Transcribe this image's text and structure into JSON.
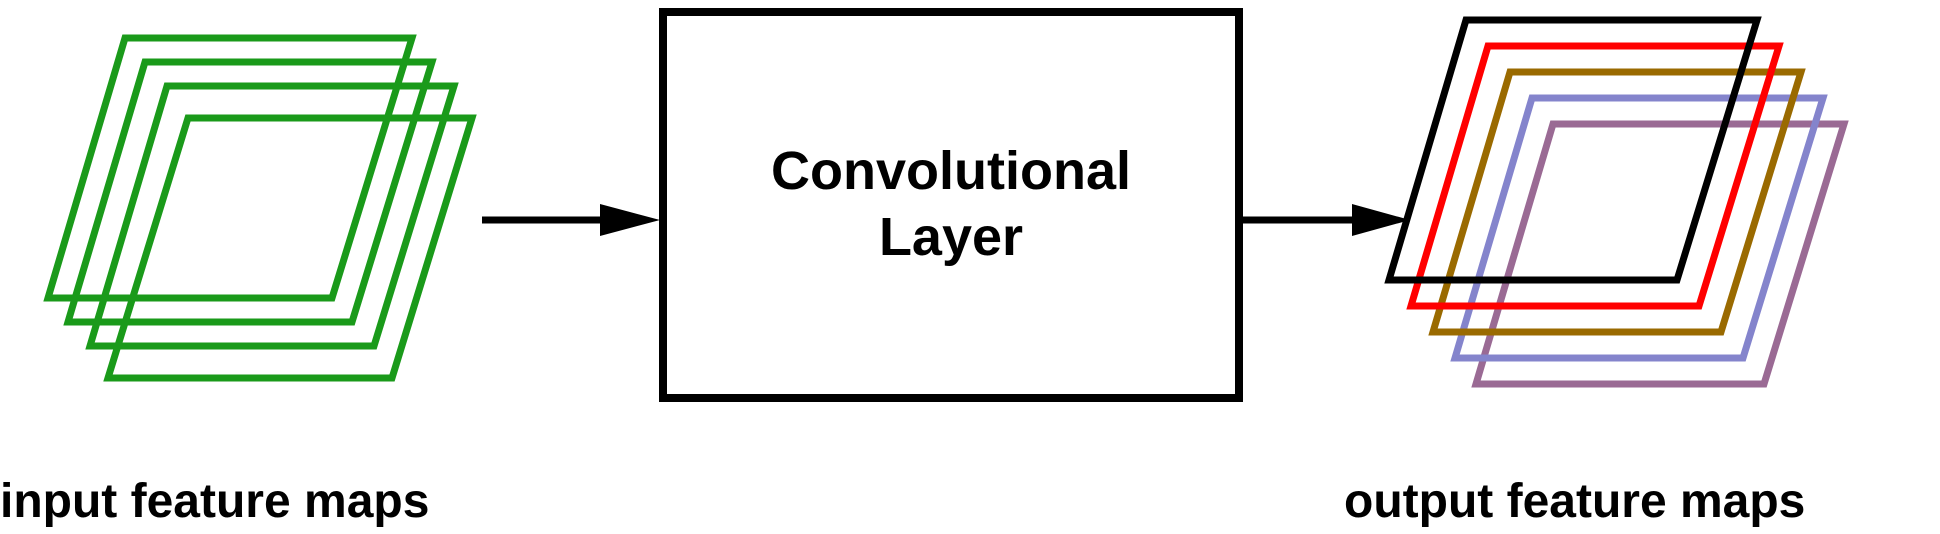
{
  "diagram": {
    "layer_box": {
      "line1": "Convolutional",
      "line2": "Layer"
    },
    "input_caption": "input feature maps",
    "output_caption": "output feature maps",
    "colors": {
      "input_maps": "#1a9a1a",
      "arrow": "#000000",
      "box_border": "#000000",
      "output_maps": [
        "#000000",
        "#ff0000",
        "#9a6a00",
        "#8484cc",
        "#9a6a94"
      ]
    }
  }
}
